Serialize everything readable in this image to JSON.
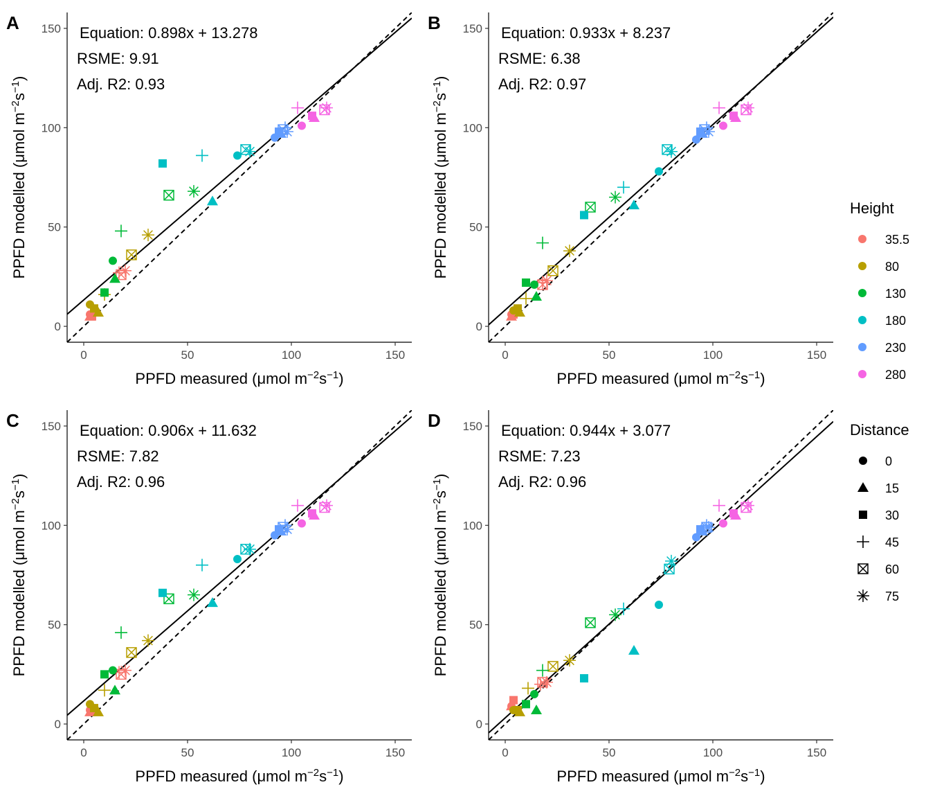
{
  "colors": {
    "35.5": "#F8766D",
    "80": "#B79F00",
    "130": "#00BA38",
    "180": "#00BFC4",
    "230": "#619CFF",
    "280": "#F564E3",
    "text": "#000000",
    "tick_label": "#4d4d4d"
  },
  "legend_height": {
    "title": "Height",
    "items": [
      {
        "label": "35.5",
        "key": "35.5"
      },
      {
        "label": "80",
        "key": "80"
      },
      {
        "label": "130",
        "key": "130"
      },
      {
        "label": "180",
        "key": "180"
      },
      {
        "label": "230",
        "key": "230"
      },
      {
        "label": "280",
        "key": "280"
      }
    ]
  },
  "legend_distance": {
    "title": "Distance",
    "items": [
      {
        "label": "0",
        "shape": "circle"
      },
      {
        "label": "15",
        "shape": "triangle"
      },
      {
        "label": "30",
        "shape": "square"
      },
      {
        "label": "45",
        "shape": "plus"
      },
      {
        "label": "60",
        "shape": "square-x"
      },
      {
        "label": "75",
        "shape": "asterisk"
      }
    ]
  },
  "chart_data": [
    {
      "panel": "A",
      "type": "scatter",
      "xlabel": "PPFD measured (μmol m⁻²s⁻¹)",
      "ylabel": "PPFD modelled (μmol m⁻²s⁻¹)",
      "xlim": [
        -8,
        158
      ],
      "ylim": [
        -8,
        158
      ],
      "x_ticks": [
        0,
        50,
        100,
        150
      ],
      "y_ticks": [
        0,
        50,
        100,
        150
      ],
      "grid": false,
      "fit": {
        "slope": 0.898,
        "intercept": 13.278,
        "line": "solid"
      },
      "identity": {
        "slope": 1,
        "intercept": 0,
        "line": "dashed"
      },
      "annotations": [
        "Equation: 0.898x + 13.278",
        "RSME: 9.91",
        "Adj. R2: 0.93"
      ],
      "points": [
        {
          "h": "35.5",
          "d": "0",
          "x": 3,
          "y": 6
        },
        {
          "h": "35.5",
          "d": "15",
          "x": 3,
          "y": 5
        },
        {
          "h": "35.5",
          "d": "30",
          "x": 4,
          "y": 5
        },
        {
          "h": "35.5",
          "d": "45",
          "x": 17,
          "y": 27
        },
        {
          "h": "35.5",
          "d": "60",
          "x": 18,
          "y": 26
        },
        {
          "h": "35.5",
          "d": "75",
          "x": 20,
          "y": 28
        },
        {
          "h": "80",
          "d": "0",
          "x": 3,
          "y": 11
        },
        {
          "h": "80",
          "d": "15",
          "x": 7,
          "y": 7
        },
        {
          "h": "80",
          "d": "30",
          "x": 5,
          "y": 9
        },
        {
          "h": "80",
          "d": "45",
          "x": 10,
          "y": 16
        },
        {
          "h": "80",
          "d": "60",
          "x": 23,
          "y": 36
        },
        {
          "h": "80",
          "d": "75",
          "x": 31,
          "y": 46
        },
        {
          "h": "130",
          "d": "0",
          "x": 14,
          "y": 33
        },
        {
          "h": "130",
          "d": "15",
          "x": 15,
          "y": 24
        },
        {
          "h": "130",
          "d": "30",
          "x": 10,
          "y": 17
        },
        {
          "h": "130",
          "d": "45",
          "x": 18,
          "y": 48
        },
        {
          "h": "130",
          "d": "60",
          "x": 41,
          "y": 66
        },
        {
          "h": "130",
          "d": "75",
          "x": 53,
          "y": 68
        },
        {
          "h": "180",
          "d": "0",
          "x": 74,
          "y": 86
        },
        {
          "h": "180",
          "d": "15",
          "x": 62,
          "y": 63
        },
        {
          "h": "180",
          "d": "30",
          "x": 38,
          "y": 82
        },
        {
          "h": "180",
          "d": "45",
          "x": 57,
          "y": 86
        },
        {
          "h": "180",
          "d": "60",
          "x": 78,
          "y": 89
        },
        {
          "h": "180",
          "d": "75",
          "x": 80,
          "y": 88
        },
        {
          "h": "230",
          "d": "0",
          "x": 92,
          "y": 95
        },
        {
          "h": "230",
          "d": "15",
          "x": 95,
          "y": 97
        },
        {
          "h": "230",
          "d": "30",
          "x": 94,
          "y": 98
        },
        {
          "h": "230",
          "d": "45",
          "x": 97,
          "y": 100
        },
        {
          "h": "230",
          "d": "60",
          "x": 96,
          "y": 99
        },
        {
          "h": "230",
          "d": "75",
          "x": 98,
          "y": 98
        },
        {
          "h": "280",
          "d": "0",
          "x": 105,
          "y": 101
        },
        {
          "h": "280",
          "d": "15",
          "x": 111,
          "y": 105
        },
        {
          "h": "280",
          "d": "30",
          "x": 110,
          "y": 106
        },
        {
          "h": "280",
          "d": "45",
          "x": 103,
          "y": 110
        },
        {
          "h": "280",
          "d": "60",
          "x": 116,
          "y": 109
        },
        {
          "h": "280",
          "d": "75",
          "x": 117,
          "y": 110
        }
      ]
    },
    {
      "panel": "B",
      "type": "scatter",
      "xlabel": "PPFD measured (μmol m⁻²s⁻¹)",
      "ylabel": "PPFD modelled (μmol m⁻²s⁻¹)",
      "xlim": [
        -8,
        158
      ],
      "ylim": [
        -8,
        158
      ],
      "x_ticks": [
        0,
        50,
        100,
        150
      ],
      "y_ticks": [
        0,
        50,
        100,
        150
      ],
      "grid": false,
      "fit": {
        "slope": 0.933,
        "intercept": 8.237,
        "line": "solid"
      },
      "identity": {
        "slope": 1,
        "intercept": 0,
        "line": "dashed"
      },
      "annotations": [
        "Equation: 0.933x + 8.237",
        "RSME: 6.38",
        "Adj. R2: 0.97"
      ],
      "points": [
        {
          "h": "35.5",
          "d": "0",
          "x": 3,
          "y": 6
        },
        {
          "h": "35.5",
          "d": "15",
          "x": 3,
          "y": 5
        },
        {
          "h": "35.5",
          "d": "30",
          "x": 4,
          "y": 6
        },
        {
          "h": "35.5",
          "d": "45",
          "x": 18,
          "y": 22
        },
        {
          "h": "35.5",
          "d": "60",
          "x": 18,
          "y": 21
        },
        {
          "h": "35.5",
          "d": "75",
          "x": 20,
          "y": 23
        },
        {
          "h": "80",
          "d": "0",
          "x": 4,
          "y": 8
        },
        {
          "h": "80",
          "d": "15",
          "x": 7,
          "y": 7
        },
        {
          "h": "80",
          "d": "30",
          "x": 6,
          "y": 9
        },
        {
          "h": "80",
          "d": "45",
          "x": 10,
          "y": 14
        },
        {
          "h": "80",
          "d": "60",
          "x": 23,
          "y": 28
        },
        {
          "h": "80",
          "d": "75",
          "x": 31,
          "y": 38
        },
        {
          "h": "130",
          "d": "0",
          "x": 14,
          "y": 21
        },
        {
          "h": "130",
          "d": "15",
          "x": 15,
          "y": 15
        },
        {
          "h": "130",
          "d": "30",
          "x": 10,
          "y": 22
        },
        {
          "h": "130",
          "d": "45",
          "x": 18,
          "y": 42
        },
        {
          "h": "130",
          "d": "60",
          "x": 41,
          "y": 60
        },
        {
          "h": "130",
          "d": "75",
          "x": 53,
          "y": 65
        },
        {
          "h": "180",
          "d": "0",
          "x": 74,
          "y": 78
        },
        {
          "h": "180",
          "d": "15",
          "x": 62,
          "y": 61
        },
        {
          "h": "180",
          "d": "30",
          "x": 38,
          "y": 56
        },
        {
          "h": "180",
          "d": "45",
          "x": 57,
          "y": 70
        },
        {
          "h": "180",
          "d": "60",
          "x": 78,
          "y": 89
        },
        {
          "h": "180",
          "d": "75",
          "x": 80,
          "y": 88
        },
        {
          "h": "230",
          "d": "0",
          "x": 92,
          "y": 94
        },
        {
          "h": "230",
          "d": "15",
          "x": 95,
          "y": 97
        },
        {
          "h": "230",
          "d": "30",
          "x": 94,
          "y": 98
        },
        {
          "h": "230",
          "d": "45",
          "x": 97,
          "y": 100
        },
        {
          "h": "230",
          "d": "60",
          "x": 96,
          "y": 99
        },
        {
          "h": "230",
          "d": "75",
          "x": 98,
          "y": 98
        },
        {
          "h": "280",
          "d": "0",
          "x": 105,
          "y": 101
        },
        {
          "h": "280",
          "d": "15",
          "x": 111,
          "y": 105
        },
        {
          "h": "280",
          "d": "30",
          "x": 110,
          "y": 106
        },
        {
          "h": "280",
          "d": "45",
          "x": 103,
          "y": 110
        },
        {
          "h": "280",
          "d": "60",
          "x": 116,
          "y": 109
        },
        {
          "h": "280",
          "d": "75",
          "x": 117,
          "y": 110
        }
      ]
    },
    {
      "panel": "C",
      "type": "scatter",
      "xlabel": "PPFD measured (μmol m⁻²s⁻¹)",
      "ylabel": "PPFD modelled (μmol m⁻²s⁻¹)",
      "xlim": [
        -8,
        158
      ],
      "ylim": [
        -8,
        158
      ],
      "x_ticks": [
        0,
        50,
        100,
        150
      ],
      "y_ticks": [
        0,
        50,
        100,
        150
      ],
      "grid": false,
      "fit": {
        "slope": 0.906,
        "intercept": 11.632,
        "line": "solid"
      },
      "identity": {
        "slope": 1,
        "intercept": 0,
        "line": "dashed"
      },
      "annotations": [
        "Equation: 0.906x + 11.632",
        "RSME: 7.82",
        "Adj. R2: 0.96"
      ],
      "points": [
        {
          "h": "35.5",
          "d": "0",
          "x": 3,
          "y": 7
        },
        {
          "h": "35.5",
          "d": "15",
          "x": 3,
          "y": 6
        },
        {
          "h": "35.5",
          "d": "30",
          "x": 4,
          "y": 7
        },
        {
          "h": "35.5",
          "d": "45",
          "x": 17,
          "y": 26
        },
        {
          "h": "35.5",
          "d": "60",
          "x": 18,
          "y": 25
        },
        {
          "h": "35.5",
          "d": "75",
          "x": 20,
          "y": 27
        },
        {
          "h": "80",
          "d": "0",
          "x": 3,
          "y": 10
        },
        {
          "h": "80",
          "d": "15",
          "x": 7,
          "y": 6
        },
        {
          "h": "80",
          "d": "30",
          "x": 5,
          "y": 8
        },
        {
          "h": "80",
          "d": "45",
          "x": 10,
          "y": 17
        },
        {
          "h": "80",
          "d": "60",
          "x": 23,
          "y": 36
        },
        {
          "h": "80",
          "d": "75",
          "x": 31,
          "y": 42
        },
        {
          "h": "130",
          "d": "0",
          "x": 14,
          "y": 27
        },
        {
          "h": "130",
          "d": "15",
          "x": 15,
          "y": 17
        },
        {
          "h": "130",
          "d": "30",
          "x": 10,
          "y": 25
        },
        {
          "h": "130",
          "d": "45",
          "x": 18,
          "y": 46
        },
        {
          "h": "130",
          "d": "60",
          "x": 41,
          "y": 63
        },
        {
          "h": "130",
          "d": "75",
          "x": 53,
          "y": 65
        },
        {
          "h": "180",
          "d": "0",
          "x": 74,
          "y": 83
        },
        {
          "h": "180",
          "d": "15",
          "x": 62,
          "y": 61
        },
        {
          "h": "180",
          "d": "30",
          "x": 38,
          "y": 66
        },
        {
          "h": "180",
          "d": "45",
          "x": 57,
          "y": 80
        },
        {
          "h": "180",
          "d": "60",
          "x": 78,
          "y": 88
        },
        {
          "h": "180",
          "d": "75",
          "x": 80,
          "y": 88
        },
        {
          "h": "230",
          "d": "0",
          "x": 92,
          "y": 95
        },
        {
          "h": "230",
          "d": "15",
          "x": 95,
          "y": 97
        },
        {
          "h": "230",
          "d": "30",
          "x": 94,
          "y": 98
        },
        {
          "h": "230",
          "d": "45",
          "x": 97,
          "y": 100
        },
        {
          "h": "230",
          "d": "60",
          "x": 96,
          "y": 99
        },
        {
          "h": "230",
          "d": "75",
          "x": 98,
          "y": 98
        },
        {
          "h": "280",
          "d": "0",
          "x": 105,
          "y": 101
        },
        {
          "h": "280",
          "d": "15",
          "x": 111,
          "y": 105
        },
        {
          "h": "280",
          "d": "30",
          "x": 110,
          "y": 106
        },
        {
          "h": "280",
          "d": "45",
          "x": 103,
          "y": 110
        },
        {
          "h": "280",
          "d": "60",
          "x": 116,
          "y": 109
        },
        {
          "h": "280",
          "d": "75",
          "x": 117,
          "y": 110
        }
      ]
    },
    {
      "panel": "D",
      "type": "scatter",
      "xlabel": "PPFD measured (μmol m⁻²s⁻¹)",
      "ylabel": "PPFD modelled (μmol m⁻²s⁻¹)",
      "xlim": [
        -8,
        158
      ],
      "ylim": [
        -8,
        158
      ],
      "x_ticks": [
        0,
        50,
        100,
        150
      ],
      "y_ticks": [
        0,
        50,
        100,
        150
      ],
      "grid": false,
      "fit": {
        "slope": 0.944,
        "intercept": 3.077,
        "line": "solid"
      },
      "identity": {
        "slope": 1,
        "intercept": 0,
        "line": "dashed"
      },
      "annotations": [
        "Equation: 0.944x + 3.077",
        "RSME: 7.23",
        "Adj. R2: 0.96"
      ],
      "points": [
        {
          "h": "35.5",
          "d": "0",
          "x": 3,
          "y": 9
        },
        {
          "h": "35.5",
          "d": "15",
          "x": 3,
          "y": 9
        },
        {
          "h": "35.5",
          "d": "30",
          "x": 4,
          "y": 12
        },
        {
          "h": "35.5",
          "d": "45",
          "x": 17,
          "y": 20
        },
        {
          "h": "35.5",
          "d": "60",
          "x": 18,
          "y": 21
        },
        {
          "h": "35.5",
          "d": "75",
          "x": 20,
          "y": 21
        },
        {
          "h": "80",
          "d": "0",
          "x": 4,
          "y": 7
        },
        {
          "h": "80",
          "d": "15",
          "x": 7,
          "y": 6
        },
        {
          "h": "80",
          "d": "30",
          "x": 6,
          "y": 7
        },
        {
          "h": "80",
          "d": "45",
          "x": 11,
          "y": 18
        },
        {
          "h": "80",
          "d": "60",
          "x": 23,
          "y": 29
        },
        {
          "h": "80",
          "d": "75",
          "x": 31,
          "y": 32
        },
        {
          "h": "130",
          "d": "0",
          "x": 14,
          "y": 15
        },
        {
          "h": "130",
          "d": "15",
          "x": 15,
          "y": 7
        },
        {
          "h": "130",
          "d": "30",
          "x": 10,
          "y": 10
        },
        {
          "h": "130",
          "d": "45",
          "x": 18,
          "y": 27
        },
        {
          "h": "130",
          "d": "60",
          "x": 41,
          "y": 51
        },
        {
          "h": "130",
          "d": "75",
          "x": 53,
          "y": 55
        },
        {
          "h": "180",
          "d": "0",
          "x": 74,
          "y": 60
        },
        {
          "h": "180",
          "d": "15",
          "x": 62,
          "y": 37
        },
        {
          "h": "180",
          "d": "30",
          "x": 38,
          "y": 23
        },
        {
          "h": "180",
          "d": "45",
          "x": 57,
          "y": 58
        },
        {
          "h": "180",
          "d": "60",
          "x": 79,
          "y": 78
        },
        {
          "h": "180",
          "d": "75",
          "x": 80,
          "y": 82
        },
        {
          "h": "230",
          "d": "0",
          "x": 92,
          "y": 94
        },
        {
          "h": "230",
          "d": "15",
          "x": 95,
          "y": 97
        },
        {
          "h": "230",
          "d": "30",
          "x": 94,
          "y": 98
        },
        {
          "h": "230",
          "d": "45",
          "x": 97,
          "y": 100
        },
        {
          "h": "230",
          "d": "60",
          "x": 97,
          "y": 99
        },
        {
          "h": "230",
          "d": "75",
          "x": 98,
          "y": 99
        },
        {
          "h": "280",
          "d": "0",
          "x": 105,
          "y": 101
        },
        {
          "h": "280",
          "d": "15",
          "x": 111,
          "y": 105
        },
        {
          "h": "280",
          "d": "30",
          "x": 110,
          "y": 106
        },
        {
          "h": "280",
          "d": "45",
          "x": 103,
          "y": 110
        },
        {
          "h": "280",
          "d": "60",
          "x": 116,
          "y": 109
        },
        {
          "h": "280",
          "d": "75",
          "x": 117,
          "y": 110
        }
      ]
    }
  ]
}
